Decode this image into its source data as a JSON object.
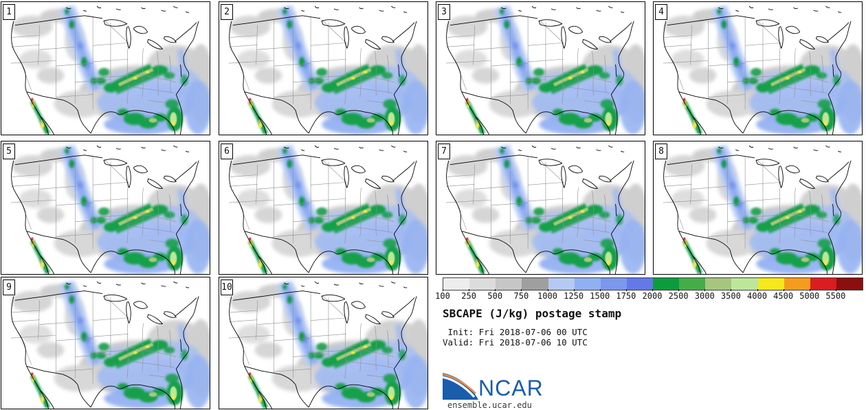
{
  "panels": [
    {
      "label": "1"
    },
    {
      "label": "2"
    },
    {
      "label": "3"
    },
    {
      "label": "4"
    },
    {
      "label": "5"
    },
    {
      "label": "6"
    },
    {
      "label": "7"
    },
    {
      "label": "8"
    },
    {
      "label": "9"
    },
    {
      "label": "10"
    }
  ],
  "colorbar": {
    "units": "J/kg",
    "ticks": [
      "100",
      "250",
      "500",
      "750",
      "1000",
      "1250",
      "1500",
      "1750",
      "2000",
      "2500",
      "3000",
      "3500",
      "4000",
      "4500",
      "5000",
      "5500"
    ],
    "colors": [
      "#ededed",
      "#dcdcdc",
      "#c6c6c6",
      "#9f9f9f",
      "#b5c9f3",
      "#8fb0f2",
      "#7b97ee",
      "#6478e8",
      "#0c9c3c",
      "#44ad4a",
      "#a6c57e",
      "#bce79a",
      "#f5e81c",
      "#f59c1e",
      "#d91d20",
      "#8a0f0f"
    ]
  },
  "info": {
    "title": "SBCAPE (J/kg) postage stamp",
    "init_line": " Init: Fri 2018-07-06 00 UTC",
    "valid_line": "Valid: Fri 2018-07-06 10 UTC"
  },
  "branding": {
    "logo_text": "NCAR",
    "site_text": "ensemble.ucar.edu",
    "logo_blue": "#1a5dab",
    "logo_orange": "#ef8b3a"
  }
}
